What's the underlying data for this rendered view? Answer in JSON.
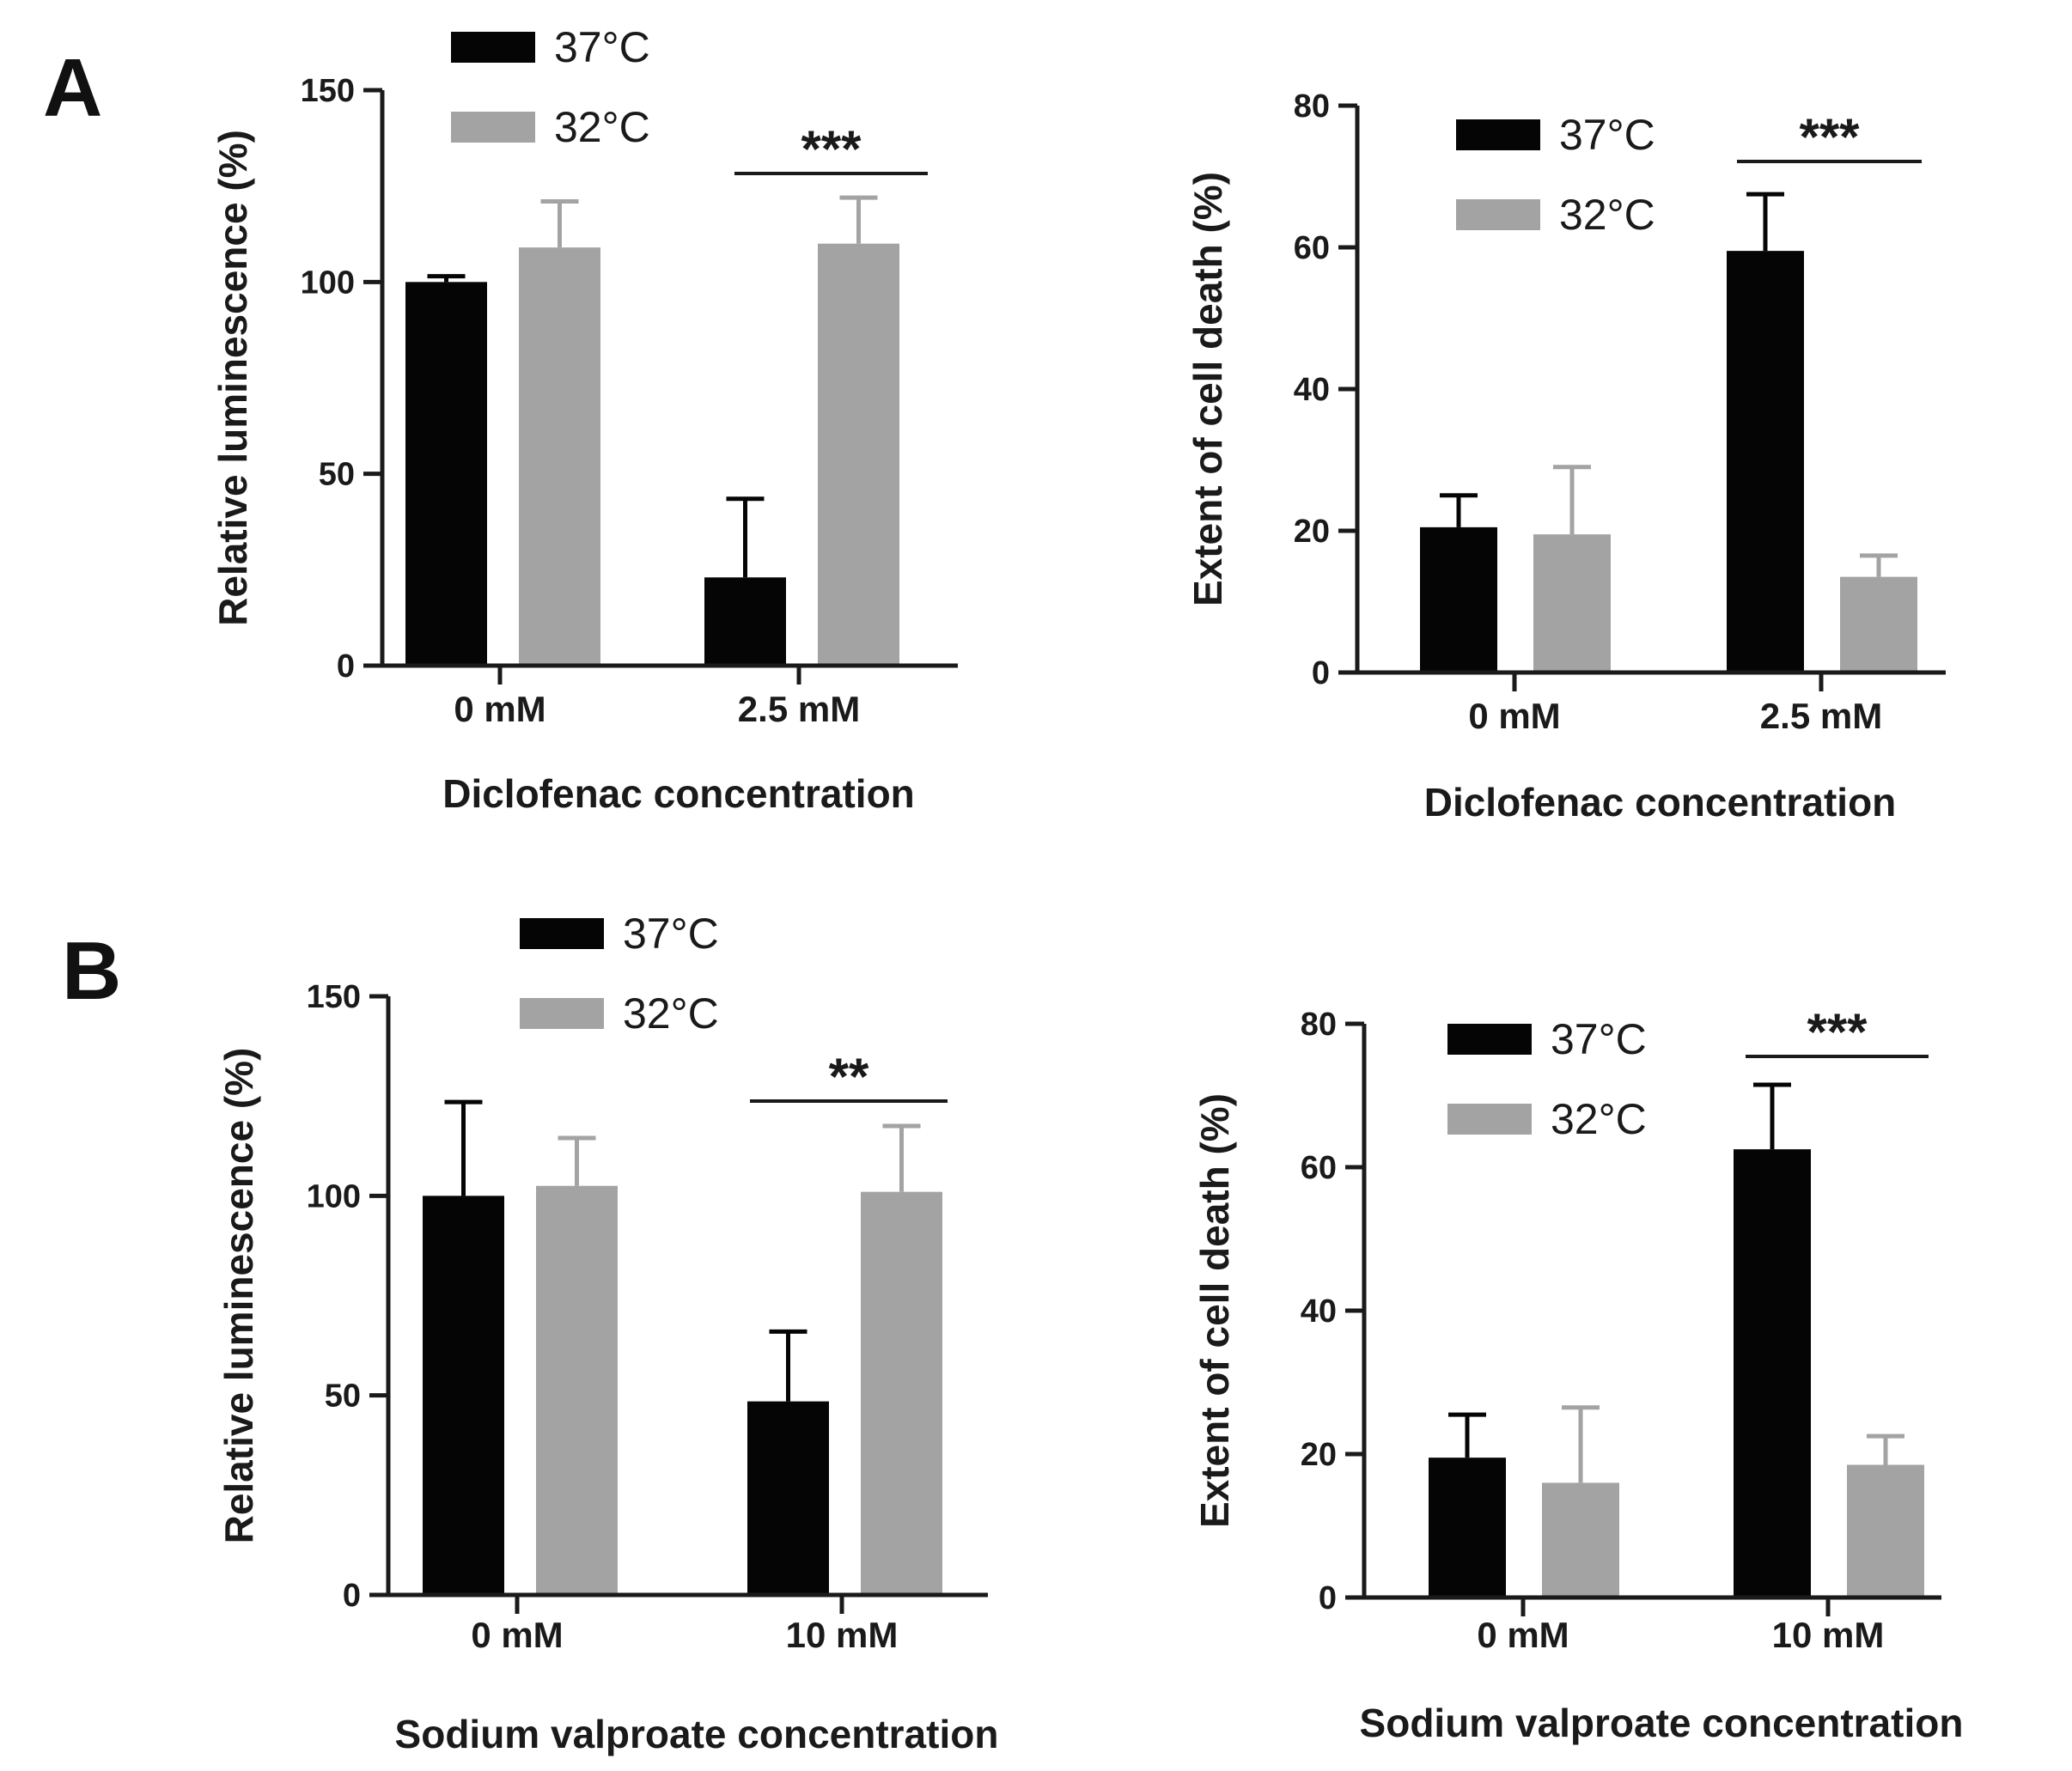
{
  "panels": [
    {
      "letter": "A"
    },
    {
      "letter": "B"
    }
  ],
  "colors": {
    "37C": "#050505",
    "32C": "#a3a3a3",
    "axis": "#1a1a1a"
  },
  "chart_data": [
    {
      "type": "bar",
      "panel": "A",
      "categories": [
        "0 mM",
        "2.5 mM"
      ],
      "series": [
        {
          "name": "37°C",
          "values": [
            100,
            23
          ],
          "errors": [
            1.5,
            20.5
          ]
        },
        {
          "name": "32°C",
          "values": [
            109,
            110
          ],
          "errors": [
            12,
            12
          ]
        }
      ],
      "xlabel": "Diclofenac concentration",
      "ylabel": "Relative luminescence (%)",
      "ylim": [
        0,
        150
      ],
      "yticks": [
        "0",
        "50",
        "100",
        "150"
      ],
      "significance": {
        "category_index": 1,
        "label": "***"
      },
      "legend": "top-left"
    },
    {
      "type": "bar",
      "panel": "A",
      "categories": [
        "0 mM",
        "2.5 mM"
      ],
      "series": [
        {
          "name": "37°C",
          "values": [
            20.5,
            59.5
          ],
          "errors": [
            4.5,
            8
          ]
        },
        {
          "name": "32°C",
          "values": [
            19.5,
            13.5
          ],
          "errors": [
            9.5,
            3
          ]
        }
      ],
      "xlabel": "Diclofenac concentration",
      "ylabel": "Extent of cell death (%)",
      "ylim": [
        0,
        80
      ],
      "yticks": [
        "0",
        "20",
        "40",
        "60",
        "80"
      ],
      "significance": {
        "category_index": 1,
        "label": "***"
      },
      "legend": "top-left"
    },
    {
      "type": "bar",
      "panel": "B",
      "categories": [
        "0 mM",
        "10 mM"
      ],
      "series": [
        {
          "name": "37°C",
          "values": [
            100,
            48.5
          ],
          "errors": [
            23.5,
            17.5
          ]
        },
        {
          "name": "32°C",
          "values": [
            102.5,
            101
          ],
          "errors": [
            12,
            16.5
          ]
        }
      ],
      "xlabel": "Sodium valproate concentration",
      "ylabel": "Relative luminescence (%)",
      "ylim": [
        0,
        150
      ],
      "yticks": [
        "0",
        "50",
        "100",
        "150"
      ],
      "significance": {
        "category_index": 1,
        "label": "**"
      },
      "legend": "top-left"
    },
    {
      "type": "bar",
      "panel": "B",
      "categories": [
        "0 mM",
        "10 mM"
      ],
      "series": [
        {
          "name": "37°C",
          "values": [
            19.5,
            62.5
          ],
          "errors": [
            6,
            9
          ]
        },
        {
          "name": "32°C",
          "values": [
            16,
            18.5
          ],
          "errors": [
            10.5,
            4
          ]
        }
      ],
      "xlabel": "Sodium valproate concentration",
      "ylabel": "Extent of cell death (%)",
      "ylim": [
        0,
        80
      ],
      "yticks": [
        "0",
        "20",
        "40",
        "60",
        "80"
      ],
      "significance": {
        "category_index": 1,
        "label": "***"
      },
      "legend": "top-left"
    }
  ]
}
